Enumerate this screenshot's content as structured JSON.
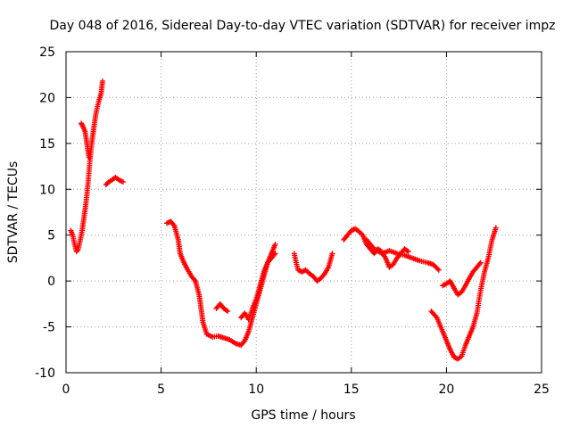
{
  "chart_data": {
    "type": "scatter",
    "title": "Day 048 of 2016, Sidereal Day-to-day VTEC variation (SDTVAR) for receiver impz",
    "xlabel": "GPS time / hours",
    "ylabel": "SDTVAR / TECUs",
    "xlim": [
      0,
      25
    ],
    "ylim": [
      -10,
      25
    ],
    "xticks": [
      0,
      5,
      10,
      15,
      20,
      25
    ],
    "yticks": [
      -10,
      -5,
      0,
      5,
      10,
      15,
      20,
      25
    ],
    "xtick_labels": [
      "0",
      "5",
      "10",
      "15",
      "20",
      "25"
    ],
    "ytick_labels": [
      "-10",
      "-5",
      "0",
      "5",
      "10",
      "15",
      "20",
      "25"
    ],
    "grid": true,
    "marker": "+",
    "color": "#ff0000",
    "series": [
      {
        "name": "SDTVAR",
        "segments": [
          [
            [
              0.25,
              5.5
            ],
            [
              0.35,
              5.0
            ],
            [
              0.45,
              4.0
            ],
            [
              0.55,
              3.2
            ],
            [
              0.65,
              3.5
            ],
            [
              0.75,
              4.5
            ],
            [
              0.85,
              5.5
            ],
            [
              0.95,
              7.0
            ],
            [
              1.05,
              8.5
            ],
            [
              1.15,
              10.5
            ],
            [
              1.25,
              13.0
            ],
            [
              1.35,
              15.0
            ],
            [
              1.45,
              16.5
            ],
            [
              1.55,
              18.0
            ],
            [
              1.65,
              19.0
            ],
            [
              1.75,
              19.8
            ],
            [
              1.85,
              20.5
            ],
            [
              1.92,
              21.8
            ]
          ],
          [
            [
              0.8,
              17.2
            ],
            [
              0.9,
              16.8
            ],
            [
              1.0,
              16.3
            ],
            [
              1.1,
              15.0
            ],
            [
              1.2,
              13.5
            ]
          ],
          [
            [
              2.1,
              10.5
            ],
            [
              2.25,
              10.8
            ],
            [
              2.4,
              11.0
            ],
            [
              2.6,
              11.3
            ],
            [
              2.8,
              11.0
            ],
            [
              3.0,
              10.8
            ]
          ],
          [
            [
              5.3,
              6.3
            ],
            [
              5.5,
              6.5
            ],
            [
              5.7,
              6.0
            ],
            [
              5.9,
              4.5
            ],
            [
              6.0,
              3.0
            ],
            [
              6.2,
              2.0
            ],
            [
              6.4,
              1.2
            ],
            [
              6.6,
              0.5
            ],
            [
              6.8,
              0.0
            ],
            [
              7.0,
              -1.5
            ],
            [
              7.1,
              -3.0
            ],
            [
              7.2,
              -4.5
            ],
            [
              7.4,
              -5.8
            ],
            [
              7.7,
              -6.1
            ],
            [
              8.0,
              -6.0
            ],
            [
              8.3,
              -6.2
            ],
            [
              8.6,
              -6.4
            ],
            [
              8.9,
              -6.8
            ],
            [
              9.2,
              -7.0
            ],
            [
              9.4,
              -6.5
            ],
            [
              9.6,
              -5.5
            ],
            [
              9.8,
              -4.0
            ],
            [
              10.0,
              -2.5
            ],
            [
              10.2,
              -1.0
            ],
            [
              10.4,
              0.5
            ],
            [
              10.6,
              2.0
            ],
            [
              10.8,
              3.0
            ],
            [
              11.0,
              4.0
            ]
          ],
          [
            [
              7.9,
              -3.0
            ],
            [
              8.1,
              -2.5
            ],
            [
              8.3,
              -3.0
            ],
            [
              8.5,
              -3.3
            ]
          ],
          [
            [
              9.2,
              -4.0
            ],
            [
              9.4,
              -3.5
            ],
            [
              9.6,
              -4.2
            ],
            [
              9.8,
              -3.0
            ],
            [
              10.0,
              -2.0
            ],
            [
              10.2,
              -0.5
            ],
            [
              10.4,
              1.0
            ],
            [
              10.6,
              2.0
            ],
            [
              10.8,
              2.5
            ],
            [
              11.0,
              3.0
            ]
          ],
          [
            [
              12.0,
              3.0
            ],
            [
              12.1,
              2.0
            ],
            [
              12.2,
              1.2
            ],
            [
              12.4,
              1.0
            ],
            [
              12.6,
              1.2
            ],
            [
              12.8,
              0.8
            ],
            [
              13.0,
              0.5
            ],
            [
              13.2,
              0.0
            ],
            [
              13.4,
              0.3
            ],
            [
              13.6,
              0.8
            ],
            [
              13.8,
              1.5
            ],
            [
              14.0,
              3.0
            ]
          ],
          [
            [
              14.6,
              4.5
            ],
            [
              14.8,
              5.0
            ],
            [
              15.0,
              5.5
            ],
            [
              15.2,
              5.7
            ],
            [
              15.4,
              5.4
            ],
            [
              15.6,
              5.0
            ],
            [
              15.8,
              4.0
            ],
            [
              16.0,
              3.5
            ],
            [
              16.2,
              3.0
            ],
            [
              16.4,
              3.5
            ],
            [
              16.6,
              3.2
            ],
            [
              16.8,
              2.5
            ],
            [
              17.0,
              1.5
            ],
            [
              17.2,
              1.8
            ],
            [
              17.4,
              2.5
            ],
            [
              17.6,
              3.0
            ],
            [
              17.8,
              3.5
            ],
            [
              18.0,
              3.2
            ]
          ],
          [
            [
              15.8,
              4.5
            ],
            [
              16.2,
              3.5
            ],
            [
              16.6,
              3.0
            ],
            [
              17.0,
              3.3
            ],
            [
              17.4,
              3.0
            ],
            [
              17.8,
              2.8
            ],
            [
              18.2,
              2.5
            ],
            [
              18.6,
              2.2
            ],
            [
              19.0,
              2.0
            ],
            [
              19.3,
              1.8
            ],
            [
              19.6,
              1.2
            ]
          ],
          [
            [
              19.8,
              -0.5
            ],
            [
              20.0,
              -0.3
            ],
            [
              20.2,
              0.0
            ],
            [
              20.4,
              -0.8
            ],
            [
              20.6,
              -1.5
            ],
            [
              20.8,
              -1.2
            ],
            [
              21.0,
              -0.5
            ],
            [
              21.2,
              0.3
            ],
            [
              21.4,
              1.0
            ],
            [
              21.6,
              1.5
            ],
            [
              21.8,
              2.0
            ]
          ],
          [
            [
              19.2,
              -3.3
            ],
            [
              19.5,
              -4.0
            ],
            [
              19.8,
              -5.5
            ],
            [
              20.0,
              -6.5
            ],
            [
              20.2,
              -7.5
            ],
            [
              20.4,
              -8.3
            ],
            [
              20.6,
              -8.5
            ],
            [
              20.8,
              -8.2
            ],
            [
              21.0,
              -7.0
            ],
            [
              21.2,
              -6.0
            ],
            [
              21.4,
              -5.0
            ],
            [
              21.6,
              -3.5
            ],
            [
              21.8,
              -1.0
            ],
            [
              22.0,
              1.0
            ],
            [
              22.2,
              2.5
            ],
            [
              22.4,
              4.5
            ],
            [
              22.6,
              5.8
            ]
          ]
        ]
      }
    ]
  }
}
